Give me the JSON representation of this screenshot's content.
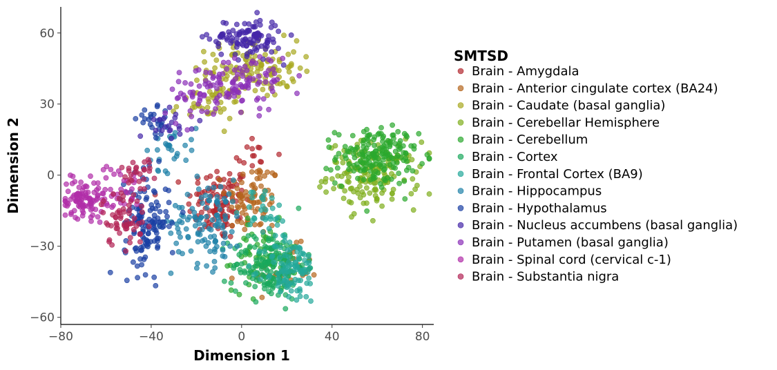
{
  "chart_data": {
    "type": "scatter",
    "title": "",
    "xlabel": "Dimension 1",
    "ylabel": "Dimension 2",
    "xlim": [
      -80,
      85
    ],
    "ylim": [
      -63,
      71
    ],
    "xticks": [
      -80,
      -40,
      0,
      40,
      80
    ],
    "yticks": [
      -60,
      -30,
      0,
      30,
      60
    ],
    "xtick_labels": [
      "−80",
      "−40",
      "0",
      "40",
      "80"
    ],
    "ytick_labels": [
      "−60",
      "−30",
      "0",
      "30",
      "60"
    ],
    "grid": false,
    "legend": {
      "title": "SMTSD",
      "placement": "right"
    },
    "series": [
      {
        "name": "Brain - Amygdala",
        "color": "#B2272D",
        "clusters": [
          {
            "center": [
              -10,
              -12
            ],
            "spread": [
              7,
              8
            ],
            "n": 110
          },
          {
            "center": [
              5,
              8
            ],
            "spread": [
              5,
              5
            ],
            "n": 15
          }
        ]
      },
      {
        "name": "Brain - Anterior cingulate cortex (BA24)",
        "color": "#B5651D",
        "clusters": [
          {
            "center": [
              5,
              -10
            ],
            "spread": [
              6,
              8
            ],
            "n": 80
          },
          {
            "center": [
              20,
              -40
            ],
            "spread": [
              7,
              5
            ],
            "n": 30
          }
        ]
      },
      {
        "name": "Brain - Caudate (basal ganglia)",
        "color": "#A8A820",
        "clusters": [
          {
            "center": [
              5,
              45
            ],
            "spread": [
              10,
              6
            ],
            "n": 130
          },
          {
            "center": [
              -15,
              30
            ],
            "spread": [
              8,
              4
            ],
            "n": 40
          }
        ]
      },
      {
        "name": "Brain - Cerebellar Hemisphere",
        "color": "#7FAE1C",
        "clusters": [
          {
            "center": [
              58,
              0
            ],
            "spread": [
              10,
              7
            ],
            "n": 160
          }
        ]
      },
      {
        "name": "Brain - Cerebellum",
        "color": "#2BA82E",
        "clusters": [
          {
            "center": [
              60,
              8
            ],
            "spread": [
              9,
              6
            ],
            "n": 180
          },
          {
            "center": [
              10,
              -35
            ],
            "spread": [
              7,
              7
            ],
            "n": 70
          }
        ]
      },
      {
        "name": "Brain - Cortex",
        "color": "#19A85C",
        "clusters": [
          {
            "center": [
              12,
              -38
            ],
            "spread": [
              8,
              7
            ],
            "n": 150
          }
        ]
      },
      {
        "name": "Brain - Frontal Cortex (BA9)",
        "color": "#23A89A",
        "clusters": [
          {
            "center": [
              22,
              -40
            ],
            "spread": [
              6,
              7
            ],
            "n": 100
          },
          {
            "center": [
              10,
              -15
            ],
            "spread": [
              5,
              5
            ],
            "n": 30
          }
        ]
      },
      {
        "name": "Brain - Hippocampus",
        "color": "#1F82A8",
        "clusters": [
          {
            "center": [
              -15,
              -20
            ],
            "spread": [
              8,
              9
            ],
            "n": 110
          },
          {
            "center": [
              -32,
              12
            ],
            "spread": [
              6,
              5
            ],
            "n": 30
          }
        ]
      },
      {
        "name": "Brain - Hypothalamus",
        "color": "#1A3FA3",
        "clusters": [
          {
            "center": [
              -42,
              -20
            ],
            "spread": [
              5,
              10
            ],
            "n": 130
          },
          {
            "center": [
              -38,
              22
            ],
            "spread": [
              4,
              3
            ],
            "n": 25
          }
        ]
      },
      {
        "name": "Brain - Nucleus accumbens (basal ganglia)",
        "color": "#4527A8",
        "clusters": [
          {
            "center": [
              2,
              58
            ],
            "spread": [
              8,
              4
            ],
            "n": 110
          },
          {
            "center": [
              -30,
              22
            ],
            "spread": [
              5,
              3
            ],
            "n": 20
          }
        ]
      },
      {
        "name": "Brain - Putamen (basal ganglia)",
        "color": "#8A2FB8",
        "clusters": [
          {
            "center": [
              -10,
              35
            ],
            "spread": [
              12,
              6
            ],
            "n": 90
          },
          {
            "center": [
              5,
              42
            ],
            "spread": [
              8,
              4
            ],
            "n": 40
          }
        ]
      },
      {
        "name": "Brain - Spinal cord (cervical c-1)",
        "color": "#B02EA8",
        "clusters": [
          {
            "center": [
              -70,
              -10
            ],
            "spread": [
              5,
              4
            ],
            "n": 100
          },
          {
            "center": [
              -55,
              -5
            ],
            "spread": [
              5,
              5
            ],
            "n": 30
          }
        ]
      },
      {
        "name": "Brain - Substantia nigra",
        "color": "#B22455",
        "clusters": [
          {
            "center": [
              -52,
              -18
            ],
            "spread": [
              5,
              6
            ],
            "n": 60
          },
          {
            "center": [
              -45,
              0
            ],
            "spread": [
              4,
              5
            ],
            "n": 25
          }
        ]
      }
    ],
    "marker_alpha": 0.7
  }
}
